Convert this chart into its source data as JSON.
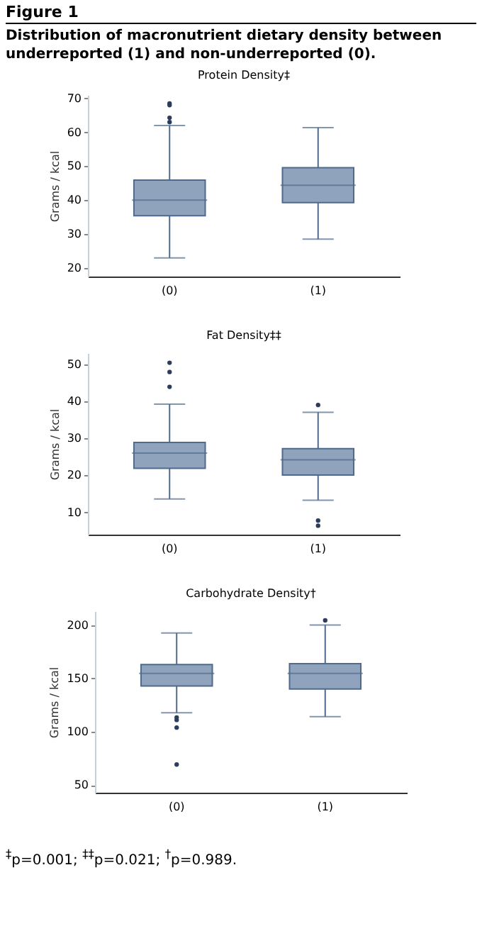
{
  "chart_data": [
    {
      "type": "box",
      "title": "Protein Density‡",
      "ylabel": "Grams / kcal",
      "categories": [
        "(0)",
        "(1)"
      ],
      "color": "#8fa3bd",
      "ylim": [
        17.5,
        71
      ],
      "yticks": [
        20,
        30,
        40,
        50,
        60,
        70
      ],
      "annotations": [
        "Figure 1",
        "Distribution of macronutrient dietary density between underreported (1) and non-underreported (0)."
      ],
      "boxes": [
        {
          "low": 23,
          "q1": 35.4,
          "median": 40,
          "q3": 45.9,
          "high": 62,
          "outliers": [
            68.5,
            68,
            64.3,
            63
          ]
        },
        {
          "low": 28.5,
          "q1": 39.3,
          "median": 44.4,
          "q3": 49.6,
          "high": 61.4
        }
      ]
    },
    {
      "type": "box",
      "title": "Fat Density‡‡",
      "ylabel": "Grams / kcal",
      "categories": [
        "(0)",
        "(1)"
      ],
      "color": "#8fa3bd",
      "ylim": [
        4,
        53
      ],
      "yticks": [
        10,
        20,
        30,
        40,
        50
      ],
      "boxes": [
        {
          "low": 13.6,
          "q1": 21.9,
          "median": 26,
          "q3": 28.9,
          "high": 39.2,
          "outliers": [
            50.4,
            47.9,
            43.9
          ]
        },
        {
          "low": 13.3,
          "q1": 20.1,
          "median": 24.2,
          "q3": 27.2,
          "high": 37,
          "outliers": [
            39,
            7.8,
            6.4
          ]
        }
      ]
    },
    {
      "type": "box",
      "title": "Carbohydrate Density†",
      "ylabel": "Grams / kcal",
      "categories": [
        "(0)",
        "(1)"
      ],
      "color": "#8fa3bd",
      "ylim": [
        43,
        213
      ],
      "yticks": [
        50,
        100,
        150,
        200
      ],
      "annotations": [
        "$^{‡}$p=0.001; $^{‡‡}$p=0.021; $^{†}$p=0.989."
      ],
      "boxes": [
        {
          "low": 117.9,
          "q1": 142.9,
          "median": 154.8,
          "q3": 163.1,
          "high": 192.5,
          "outliers": [
            113.5,
            111.1,
            104,
            69.4
          ]
        },
        {
          "low": 114.3,
          "q1": 140.1,
          "median": 154.8,
          "q3": 163.9,
          "high": 200,
          "outliers": [
            204.4
          ]
        }
      ]
    }
  ]
}
